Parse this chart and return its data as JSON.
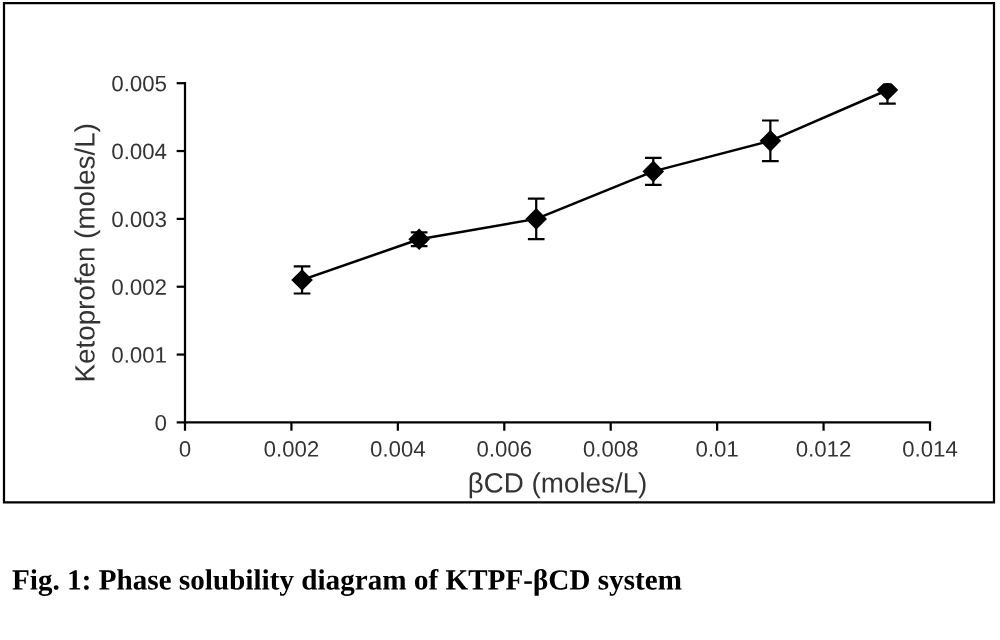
{
  "chart_data": {
    "type": "line",
    "xlabel": "βCD (moles/L)",
    "ylabel": "Ketoprofen (moles/L)",
    "x": [
      0.0022,
      0.0044,
      0.0066,
      0.0088,
      0.011,
      0.0132
    ],
    "series": [
      {
        "color": "#000000",
        "values": [
          0.0021,
          0.0027,
          0.003,
          0.0037,
          0.00415,
          0.0049
        ],
        "errors": [
          0.0002,
          0.0001,
          0.0003,
          0.0002,
          0.0003,
          0.0002
        ]
      }
    ],
    "xlim": [
      0,
      0.014
    ],
    "xticks": [
      0,
      0.002,
      0.004,
      0.006,
      0.008,
      0.01,
      0.012,
      0.014
    ],
    "ylim": [
      0,
      0.005
    ],
    "yticks": [
      0,
      0.001,
      0.002,
      0.003,
      0.004,
      0.005
    ],
    "marker": "diamond",
    "line_style": "solid",
    "grid": false,
    "legend": false,
    "annotations": [
      "Fig. 1: Phase solubility diagram of KTPF-βCD system"
    ]
  }
}
